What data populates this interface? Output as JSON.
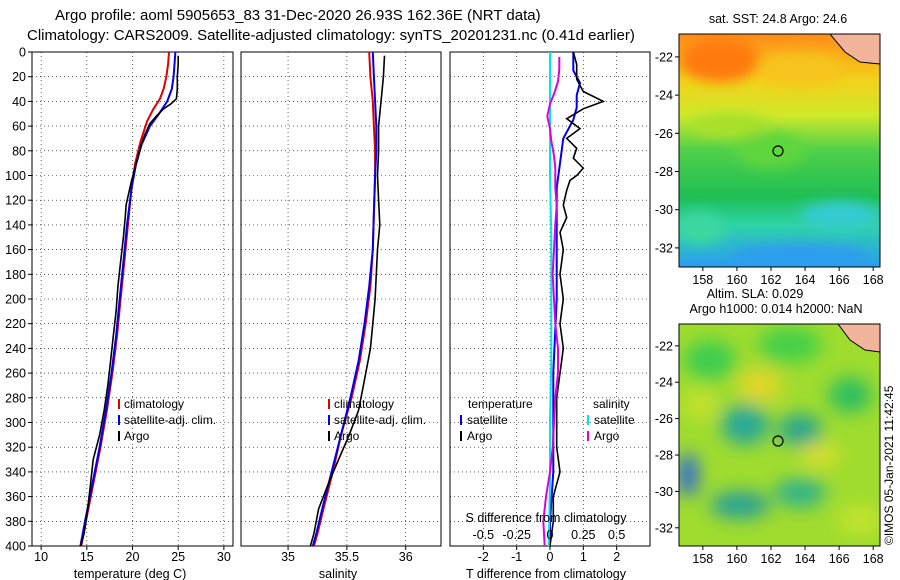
{
  "header": {
    "line1": "Argo profile: aoml 5905653_83 31-Dec-2020 26.93S 162.36E (NRT data)",
    "line2": "Climatology: CARS2009. Satellite-adjusted climatology: synTS_20201231.nc (0.41d earlier)"
  },
  "colors": {
    "climatology": "#e00000",
    "satellite": "#0000ee",
    "argo": "#000000",
    "sal_satellite": "#00e5e5",
    "sal_argo": "#dd00dd"
  },
  "depth_axis": {
    "ticks": [
      "0",
      "20",
      "40",
      "60",
      "80",
      "100",
      "120",
      "140",
      "160",
      "180",
      "200",
      "220",
      "240",
      "260",
      "280",
      "300",
      "320",
      "340",
      "360",
      "380",
      "400"
    ]
  },
  "chart_data": [
    {
      "type": "line",
      "name": "temperature",
      "xlabel": "temperature (deg C)",
      "xticks": [
        "10",
        "15",
        "20",
        "25",
        "30"
      ],
      "xlim": [
        9,
        31
      ],
      "ylim": [
        400,
        0
      ],
      "legend": [
        "climatology",
        "satellite-adj. clim.",
        "Argo"
      ],
      "series": [
        {
          "name": "climatology",
          "points": [
            [
              24.0,
              0
            ],
            [
              23.9,
              10
            ],
            [
              23.7,
              20
            ],
            [
              23.4,
              30
            ],
            [
              23.0,
              38
            ],
            [
              22.3,
              46
            ],
            [
              21.6,
              56
            ],
            [
              20.9,
              72
            ],
            [
              20.3,
              90
            ],
            [
              19.9,
              110
            ],
            [
              19.5,
              140
            ],
            [
              19.1,
              170
            ],
            [
              18.7,
              200
            ],
            [
              18.3,
              230
            ],
            [
              17.8,
              260
            ],
            [
              17.2,
              290
            ],
            [
              16.5,
              320
            ],
            [
              15.7,
              350
            ],
            [
              14.9,
              380
            ],
            [
              14.4,
              400
            ]
          ]
        },
        {
          "name": "satellite-adj. clim.",
          "points": [
            [
              24.7,
              0
            ],
            [
              24.6,
              10
            ],
            [
              24.5,
              20
            ],
            [
              24.3,
              30
            ],
            [
              23.8,
              40
            ],
            [
              22.9,
              50
            ],
            [
              21.9,
              60
            ],
            [
              21.0,
              75
            ],
            [
              20.4,
              90
            ],
            [
              19.9,
              110
            ],
            [
              19.4,
              140
            ],
            [
              19.0,
              170
            ],
            [
              18.6,
              200
            ],
            [
              18.2,
              230
            ],
            [
              17.7,
              260
            ],
            [
              17.1,
              290
            ],
            [
              16.4,
              320
            ],
            [
              15.6,
              350
            ],
            [
              14.8,
              380
            ],
            [
              14.3,
              400
            ]
          ]
        },
        {
          "name": "Argo",
          "points": [
            [
              25.0,
              3
            ],
            [
              25.0,
              10
            ],
            [
              24.9,
              20
            ],
            [
              24.9,
              30
            ],
            [
              24.8,
              38
            ],
            [
              24.2,
              42
            ],
            [
              23.4,
              46
            ],
            [
              22.6,
              52
            ],
            [
              21.9,
              58
            ],
            [
              21.4,
              66
            ],
            [
              20.9,
              76
            ],
            [
              20.6,
              86
            ],
            [
              20.2,
              96
            ],
            [
              19.9,
              104
            ],
            [
              19.6,
              114
            ],
            [
              19.3,
              124
            ],
            [
              19.2,
              134
            ],
            [
              19.0,
              150
            ],
            [
              18.7,
              170
            ],
            [
              18.4,
              190
            ],
            [
              18.2,
              210
            ],
            [
              17.9,
              230
            ],
            [
              17.6,
              250
            ],
            [
              17.3,
              270
            ],
            [
              16.9,
              290
            ],
            [
              16.4,
              310
            ],
            [
              15.7,
              330
            ],
            [
              15.4,
              350
            ],
            [
              15.1,
              370
            ],
            [
              14.7,
              390
            ],
            [
              14.3,
              400
            ]
          ]
        }
      ]
    },
    {
      "type": "line",
      "name": "salinity",
      "xlabel": "salinity",
      "xticks": [
        "35",
        "35.5",
        "36"
      ],
      "xlim": [
        34.6,
        36.3
      ],
      "ylim": [
        400,
        0
      ],
      "legend": [
        "climatology",
        "satellite-adj. clim.",
        "Argo"
      ],
      "series": [
        {
          "name": "climatology",
          "points": [
            [
              35.69,
              0
            ],
            [
              35.7,
              20
            ],
            [
              35.72,
              40
            ],
            [
              35.73,
              60
            ],
            [
              35.74,
              80
            ],
            [
              35.74,
              100
            ],
            [
              35.73,
              130
            ],
            [
              35.72,
              160
            ],
            [
              35.7,
              190
            ],
            [
              35.66,
              220
            ],
            [
              35.61,
              250
            ],
            [
              35.54,
              280
            ],
            [
              35.45,
              310
            ],
            [
              35.38,
              340
            ],
            [
              35.3,
              370
            ],
            [
              35.25,
              390
            ],
            [
              35.22,
              400
            ]
          ]
        },
        {
          "name": "satellite-adj. clim.",
          "points": [
            [
              35.72,
              0
            ],
            [
              35.73,
              20
            ],
            [
              35.74,
              40
            ],
            [
              35.75,
              60
            ],
            [
              35.75,
              80
            ],
            [
              35.74,
              100
            ],
            [
              35.73,
              130
            ],
            [
              35.72,
              160
            ],
            [
              35.69,
              190
            ],
            [
              35.65,
              220
            ],
            [
              35.6,
              250
            ],
            [
              35.53,
              280
            ],
            [
              35.45,
              310
            ],
            [
              35.37,
              340
            ],
            [
              35.29,
              370
            ],
            [
              35.24,
              390
            ],
            [
              35.21,
              400
            ]
          ]
        },
        {
          "name": "Argo",
          "points": [
            [
              35.82,
              3
            ],
            [
              35.81,
              20
            ],
            [
              35.79,
              40
            ],
            [
              35.77,
              60
            ],
            [
              35.77,
              80
            ],
            [
              35.76,
              100
            ],
            [
              35.77,
              120
            ],
            [
              35.78,
              140
            ],
            [
              35.76,
              160
            ],
            [
              35.75,
              180
            ],
            [
              35.74,
              200
            ],
            [
              35.72,
              220
            ],
            [
              35.7,
              240
            ],
            [
              35.68,
              250
            ],
            [
              35.64,
              270
            ],
            [
              35.6,
              290
            ],
            [
              35.52,
              310
            ],
            [
              35.43,
              330
            ],
            [
              35.34,
              350
            ],
            [
              35.26,
              370
            ],
            [
              35.22,
              390
            ],
            [
              35.19,
              400
            ]
          ]
        }
      ]
    },
    {
      "type": "line",
      "name": "differences",
      "xlabel": "T difference from climatology",
      "top_label": "S difference from climatology",
      "xticks": [
        "-2",
        "-1",
        "0",
        "1",
        "2"
      ],
      "top_ticks": [
        "-0.5",
        "-0.25",
        "0",
        "0.25",
        "0.5"
      ],
      "xlim": [
        -3,
        3
      ],
      "ylim": [
        400,
        0
      ],
      "legend_left": {
        "heading": "temperature",
        "items": [
          "satellite",
          "Argo"
        ]
      },
      "legend_right": {
        "heading": "salinity",
        "items": [
          "satellite",
          "Argo"
        ]
      },
      "series": [
        {
          "name": "T satellite",
          "points": [
            [
              0.7,
              0
            ],
            [
              0.7,
              15
            ],
            [
              0.9,
              25
            ],
            [
              0.8,
              35
            ],
            [
              0.8,
              45
            ],
            [
              0.7,
              55
            ],
            [
              0.4,
              70
            ],
            [
              0.3,
              90
            ],
            [
              0.2,
              110
            ],
            [
              0.2,
              140
            ],
            [
              0.2,
              200
            ],
            [
              0.1,
              260
            ],
            [
              0.1,
              300
            ],
            [
              0.1,
              340
            ],
            [
              0.0,
              380
            ],
            [
              0.0,
              400
            ]
          ]
        },
        {
          "name": "T Argo",
          "points": [
            [
              0.7,
              0
            ],
            [
              0.8,
              10
            ],
            [
              0.8,
              22
            ],
            [
              1.0,
              32
            ],
            [
              1.6,
              40
            ],
            [
              1.0,
              46
            ],
            [
              0.5,
              54
            ],
            [
              0.9,
              62
            ],
            [
              0.5,
              70
            ],
            [
              0.8,
              78
            ],
            [
              0.7,
              86
            ],
            [
              1.0,
              94
            ],
            [
              0.8,
              100
            ],
            [
              0.6,
              104
            ],
            [
              0.5,
              112
            ],
            [
              0.4,
              124
            ],
            [
              0.5,
              134
            ],
            [
              0.3,
              146
            ],
            [
              0.4,
              160
            ],
            [
              0.3,
              180
            ],
            [
              0.4,
              200
            ],
            [
              0.3,
              220
            ],
            [
              0.4,
              240
            ],
            [
              0.3,
              260
            ],
            [
              0.2,
              280
            ],
            [
              0.2,
              300
            ],
            [
              0.2,
              320
            ],
            [
              0.3,
              340
            ],
            [
              0.1,
              360
            ],
            [
              0.1,
              380
            ],
            [
              0.0,
              400
            ]
          ]
        },
        {
          "name": "S satellite",
          "points": [
            [
              0.0,
              0
            ],
            [
              0.0,
              50
            ],
            [
              0.0,
              100
            ],
            [
              0.01,
              150
            ],
            [
              0.01,
              200
            ],
            [
              0.01,
              250
            ],
            [
              0.0,
              300
            ],
            [
              0.0,
              350
            ],
            [
              -0.01,
              400
            ]
          ]
        },
        {
          "name": "S Argo",
          "points": [
            [
              0.07,
              4
            ],
            [
              0.07,
              14
            ],
            [
              0.06,
              24
            ],
            [
              0.03,
              34
            ],
            [
              0.0,
              42
            ],
            [
              -0.02,
              52
            ],
            [
              0.0,
              62
            ],
            [
              0.01,
              72
            ],
            [
              0.03,
              84
            ],
            [
              0.04,
              94
            ],
            [
              0.04,
              110
            ],
            [
              0.05,
              124
            ],
            [
              0.04,
              140
            ],
            [
              0.03,
              160
            ],
            [
              0.02,
              180
            ],
            [
              0.03,
              200
            ],
            [
              0.04,
              220
            ],
            [
              0.06,
              240
            ],
            [
              0.06,
              260
            ],
            [
              0.04,
              280
            ],
            [
              0.03,
              300
            ],
            [
              0.02,
              320
            ],
            [
              0.0,
              340
            ],
            [
              -0.03,
              360
            ],
            [
              -0.05,
              380
            ],
            [
              -0.04,
              400
            ]
          ]
        }
      ]
    }
  ],
  "sst_map": {
    "title": "sat. SST: 24.8 Argo: 24.6",
    "xticks": [
      "158",
      "160",
      "162",
      "164",
      "166",
      "168"
    ],
    "yticks": [
      "-22",
      "-24",
      "-26",
      "-28",
      "-30",
      "-32"
    ],
    "xlim": [
      156.6,
      168.4
    ],
    "ylim": [
      -33.0,
      -20.8
    ],
    "argo_position": [
      162.36,
      -26.93
    ]
  },
  "sla_map": {
    "title1": "Altim. SLA: 0.029",
    "title2": "Argo h1000: 0.014 h2000: NaN",
    "xticks": [
      "158",
      "160",
      "162",
      "164",
      "166",
      "168"
    ],
    "yticks": [
      "-22",
      "-24",
      "-26",
      "-28",
      "-30",
      "-32"
    ],
    "xlim": [
      156.6,
      168.4
    ],
    "ylim": [
      -33.0,
      -20.8
    ],
    "argo_position": [
      162.36,
      -26.93
    ]
  },
  "credit": "©IMOS 05-Jan-2021 11:42:45"
}
